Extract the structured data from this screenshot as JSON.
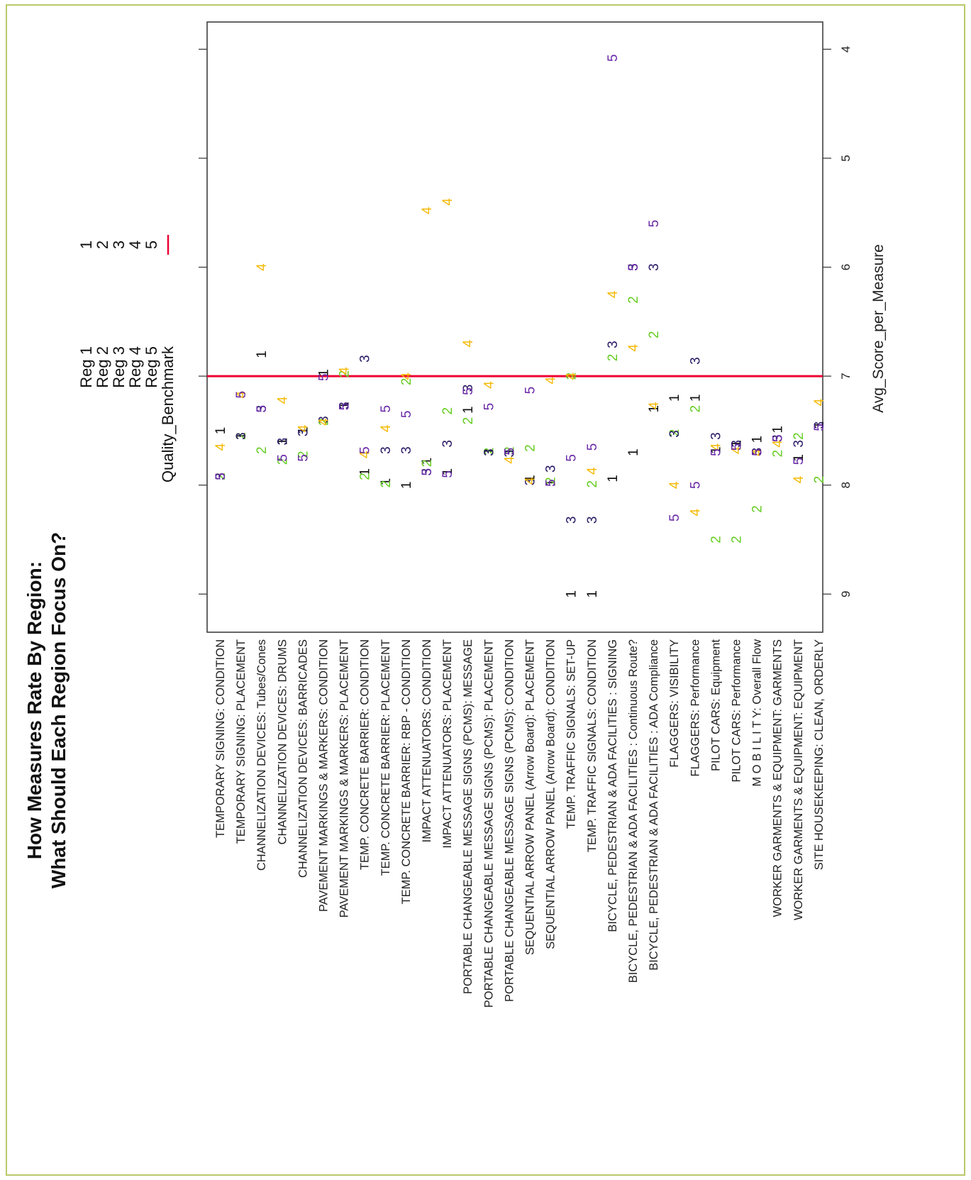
{
  "chart_data": {
    "type": "scatter",
    "title": "How Measures Rate By Region:",
    "subtitle": "What Should Each Region Focus On?",
    "xlabel": "",
    "ylabel": "Avg_Score_per_Measure",
    "ylim": [
      3.75,
      9.35
    ],
    "y_ticks": [
      "4",
      "5",
      "6",
      "7",
      "8",
      "9"
    ],
    "grid": false,
    "legend_position": "top-left",
    "legend": [
      {
        "label": "Reg 1",
        "symbol": "1",
        "color": "#111111"
      },
      {
        "label": "Reg 2",
        "symbol": "2",
        "color": "#66cc22"
      },
      {
        "label": "Reg 3",
        "symbol": "3",
        "color": "#2a1a66"
      },
      {
        "label": "Reg 4",
        "symbol": "4",
        "color": "#f5b800"
      },
      {
        "label": "Reg 5",
        "symbol": "5",
        "color": "#6a2aa8"
      },
      {
        "label": "Quality_Benchmark",
        "symbol": "line",
        "color": "#ee0033"
      }
    ],
    "benchmark": 7,
    "categories": [
      "TEMPORARY SIGNING: CONDITION",
      "TEMPORARY SIGNING: PLACEMENT",
      "CHANNELIZATION DEVICES: Tubes/Cones",
      "CHANNELIZATION DEVICES: DRUMS",
      "CHANNELIZATION DEVICES: BARRICADES",
      "PAVEMENT MARKINGS & MARKERS: CONDITION",
      "PAVEMENT MARKINGS & MARKERS: PLACEMENT",
      "TEMP. CONCRETE BARRIER: CONDITION",
      "TEMP. CONCRETE BARRIER: PLACEMENT",
      "TEMP. CONCRETE BARRIER: RBP - CONDITION",
      "IMPACT ATTENUATORS: CONDITION",
      "IMPACT ATTENUATORS: PLACEMENT",
      "PORTABLE CHANGEABLE MESSAGE SIGNS (PCMS): MESSAGE",
      "PORTABLE CHANGEABLE MESSAGE SIGNS (PCMS): PLACEMENT",
      "PORTABLE CHANGEABLE MESSAGE SIGNS (PCMS): CONDITION",
      "SEQUENTIAL ARROW PANEL (Arrow Board): PLACEMENT",
      "SEQUENTIAL ARROW PANEL (Arrow Board): CONDITION",
      "TEMP. TRAFFIC SIGNALS: SET-UP",
      "TEMP. TRAFFIC SIGNALS: CONDITION",
      "BICYCLE, PEDESTRIAN & ADA FACILITIES : SIGNING",
      "BICYCLE, PEDESTRIAN & ADA FACILITIES : Continuous Route?",
      "BICYCLE, PEDESTRIAN & ADA FACILITIES : ADA Compliance",
      "FLAGGERS: VISIBILITY",
      "FLAGGERS: Performance",
      "PILOT CARS: Equipment",
      "PILOT CARS: Performance",
      "M O B I L I T Y: Overall Flow",
      "WORKER GARMENTS & EQUIPMENT: GARMENTS",
      "WORKER GARMENTS & EQUIPMENT: EQUIPMENT",
      "SITE HOUSEKEEPING: CLEAN, ORDERLY"
    ],
    "series": [
      {
        "name": "Reg 1",
        "symbol": "1",
        "color": "#111111",
        "values": [
          7.5,
          7.55,
          6.8,
          7.6,
          7.5,
          6.97,
          7.27,
          7.88,
          7.97,
          8.0,
          7.78,
          7.88,
          7.31,
          7.69,
          7.69,
          7.94,
          7.98,
          9.0,
          9.0,
          7.94,
          7.7,
          7.3,
          7.2,
          7.2,
          7.68,
          7.62,
          7.58,
          7.49,
          7.75,
          7.45
        ]
      },
      {
        "name": "Reg 2",
        "symbol": "2",
        "color": "#66cc22",
        "values": [
          7.92,
          7.55,
          7.68,
          7.78,
          7.72,
          7.42,
          6.98,
          7.92,
          7.99,
          7.05,
          7.8,
          7.32,
          7.41,
          7.69,
          7.68,
          7.66,
          7.96,
          7.0,
          7.99,
          6.83,
          6.3,
          6.62,
          7.52,
          7.3,
          8.5,
          8.5,
          8.22,
          7.71,
          7.55,
          7.95
        ]
      },
      {
        "name": "Reg 3",
        "symbol": "3",
        "color": "#2a1a66",
        "values": [
          7.92,
          7.55,
          7.3,
          7.6,
          7.52,
          7.4,
          7.27,
          6.84,
          7.68,
          7.68,
          7.88,
          7.62,
          7.11,
          7.7,
          7.71,
          7.97,
          7.85,
          8.32,
          8.32,
          6.71,
          6.0,
          6.0,
          7.53,
          6.86,
          7.55,
          7.62,
          7.69,
          7.57,
          7.62,
          7.45
        ]
      },
      {
        "name": "Reg 4",
        "symbol": "4",
        "color": "#f5b800",
        "values": [
          7.65,
          7.17,
          6.0,
          7.22,
          7.48,
          7.42,
          6.95,
          7.72,
          7.48,
          7.0,
          5.48,
          5.4,
          6.7,
          7.08,
          7.77,
          7.96,
          7.04,
          7.0,
          7.87,
          6.25,
          6.74,
          7.27,
          8.0,
          8.25,
          7.65,
          7.68,
          7.7,
          7.62,
          7.95,
          7.24
        ]
      },
      {
        "name": "Reg 5",
        "symbol": "5",
        "color": "#6a2aa8",
        "values": [
          7.92,
          7.17,
          7.3,
          7.75,
          7.75,
          7.01,
          7.28,
          7.68,
          7.3,
          7.35,
          7.88,
          7.9,
          7.14,
          7.28,
          7.69,
          7.13,
          7.98,
          7.75,
          7.65,
          4.08,
          6.0,
          5.6,
          8.3,
          8.0,
          7.7,
          7.65,
          7.7,
          7.57,
          7.78,
          7.47
        ]
      }
    ]
  }
}
